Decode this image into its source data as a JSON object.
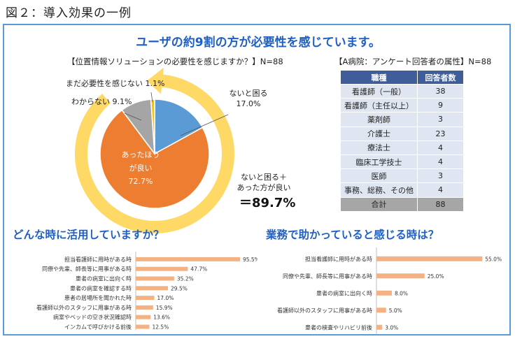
{
  "figure_caption": "図２：導入効果の一例",
  "headline": "ユーザの約9割の方が必要性を感じています。",
  "colors": {
    "accent": "#1f60c2",
    "border": "#5b9bd5",
    "table_header": "#3f5e99",
    "bar": "#f4b183"
  },
  "chart_data": [
    {
      "type": "pie",
      "title": "【位置情報ソリューションの必要性を感じますか？】N=88",
      "slices": [
        {
          "label": "ないと困る",
          "value": 17.0,
          "value_text": "17.0%",
          "color": "#5b9bd5"
        },
        {
          "label": "あったほうが良い",
          "label_line1": "あったほう",
          "label_line2": "が良い",
          "value": 72.7,
          "value_text": "72.7%",
          "color": "#ed7d31"
        },
        {
          "label": "わからない",
          "value": 9.1,
          "value_text": "9.1%",
          "color": "#a5a5a5"
        },
        {
          "label": "まだ必要性を感じない",
          "value": 1.1,
          "value_text": "1.1%",
          "color": "#ffc000"
        }
      ],
      "outer_ring": {
        "label_line1": "ないと困る＋",
        "label_line2": "あった方が良い",
        "value": 89.7,
        "value_text": "＝89.7%",
        "color": "#ffd966"
      }
    },
    {
      "type": "bar",
      "orientation": "horizontal",
      "title": "どんな時に活用していますか？",
      "categories": [
        "担当看護師に用時がある時",
        "同僚や先輩、師長等に用事がある時",
        "患者の病室に出向く時",
        "患者の病室を確認する時",
        "患者の居場所を聞かれた時",
        "看護師以外のスタッフに用事がある時",
        "病室やベッドの空き状況確認時",
        "インカムで呼びかける前後"
      ],
      "values": [
        95.5,
        47.7,
        35.2,
        29.5,
        17.0,
        15.9,
        13.6,
        12.5
      ],
      "value_labels": [
        "95.5%",
        "47.7%",
        "35.2%",
        "29.5%",
        "17.0%",
        "15.9%",
        "13.6%",
        "12.5%"
      ],
      "xlim": [
        0,
        100
      ]
    },
    {
      "type": "bar",
      "orientation": "horizontal",
      "title": "業務で助かっていると感じる時は？",
      "categories": [
        "担当看護師に用時がある時",
        "同僚や先輩、師長等に用事がある時",
        "患者の病室に出向く時",
        "看護師以外のスタッフに用事がある時",
        "患者の検査やリハビリ前後"
      ],
      "values": [
        55.0,
        25.0,
        8.0,
        5.0,
        3.0
      ],
      "value_labels": [
        "55.0%",
        "25.0%",
        "8.0%",
        "5.0%",
        "3.0%"
      ],
      "xlim": [
        0,
        60
      ]
    }
  ],
  "attribute_table": {
    "title": "【A病院：アンケート回答者の属性】N=88",
    "headers": [
      "職種",
      "回答者数"
    ],
    "rows": [
      [
        "看護師（一般）",
        "38"
      ],
      [
        "看護師（主任以上）",
        "9"
      ],
      [
        "薬剤師",
        "3"
      ],
      [
        "介護士",
        "23"
      ],
      [
        "療法士",
        "4"
      ],
      [
        "臨床工学技士",
        "4"
      ],
      [
        "医師",
        "3"
      ],
      [
        "事務、総務、その他",
        "4"
      ]
    ],
    "total": [
      "合計",
      "88"
    ]
  }
}
